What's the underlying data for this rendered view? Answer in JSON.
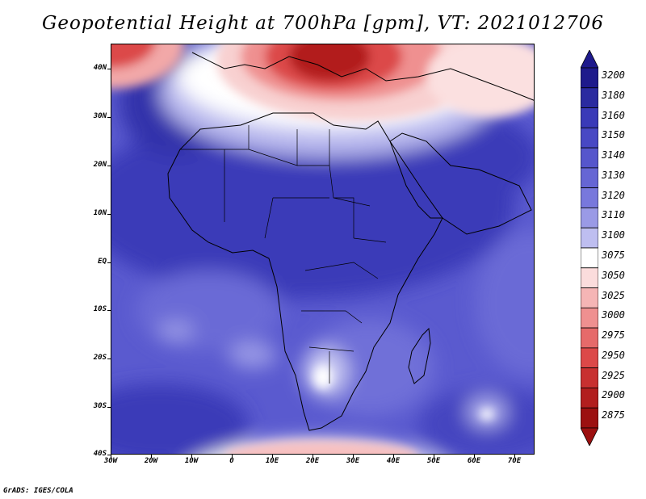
{
  "title": "Geopotential Height at 700hPa [gpm], VT: 2021012706",
  "footer": "GrADS: IGES/COLA",
  "axes": {
    "lat_labels": [
      "40N",
      "30N",
      "20N",
      "10N",
      "EQ",
      "10S",
      "20S",
      "30S",
      "40S"
    ],
    "lon_labels": [
      "30W",
      "20W",
      "10W",
      "0",
      "10E",
      "20E",
      "30E",
      "40E",
      "50E",
      "60E",
      "70E"
    ]
  },
  "colorbar": {
    "levels": [
      "3200",
      "3180",
      "3160",
      "3150",
      "3140",
      "3130",
      "3120",
      "3110",
      "3100",
      "3075",
      "3050",
      "3025",
      "3000",
      "2975",
      "2950",
      "2925",
      "2900",
      "2875"
    ],
    "colors": [
      "#1e1a8c",
      "#2a2aa0",
      "#3a3ab8",
      "#4848c4",
      "#5656cc",
      "#6666d4",
      "#7878dc",
      "#9a9ae6",
      "#bebef0",
      "#ffffff",
      "#fbdcdc",
      "#f5b5b5",
      "#ef9090",
      "#e66a6a",
      "#dc4848",
      "#c83030",
      "#b21e1e",
      "#9c1010"
    ]
  },
  "chart_data": {
    "type": "heatmap",
    "variable": "Geopotential Height at 700hPa",
    "units": "gpm",
    "valid_time": "2021012706",
    "lon_range": [
      -30,
      75
    ],
    "lat_range": [
      -40,
      45
    ],
    "contour_levels": [
      2875,
      2900,
      2925,
      2950,
      2975,
      3000,
      3025,
      3050,
      3075,
      3100,
      3110,
      3120,
      3130,
      3140,
      3150,
      3160,
      3180,
      3200
    ],
    "features": [
      {
        "region": "Eastern Mediterranean / Greece-Turkey",
        "approx_value": 2875,
        "type": "trough (low)"
      },
      {
        "region": "Northwest Atlantic corner",
        "approx_value": 2950,
        "type": "low"
      },
      {
        "region": "Subtropical North Africa / Sahara",
        "approx_value": 3160,
        "type": "ridge (high)"
      },
      {
        "region": "Atlantic near 25N 15W",
        "approx_value": 3180,
        "type": "high"
      },
      {
        "region": "South Africa interior",
        "approx_value": 3075,
        "type": "local low"
      },
      {
        "region": "Southern Ocean 40S",
        "approx_value": 3025,
        "type": "trough"
      },
      {
        "region": "Indian Ocean 30S 60E",
        "approx_value": 3100,
        "type": "local low"
      }
    ]
  }
}
